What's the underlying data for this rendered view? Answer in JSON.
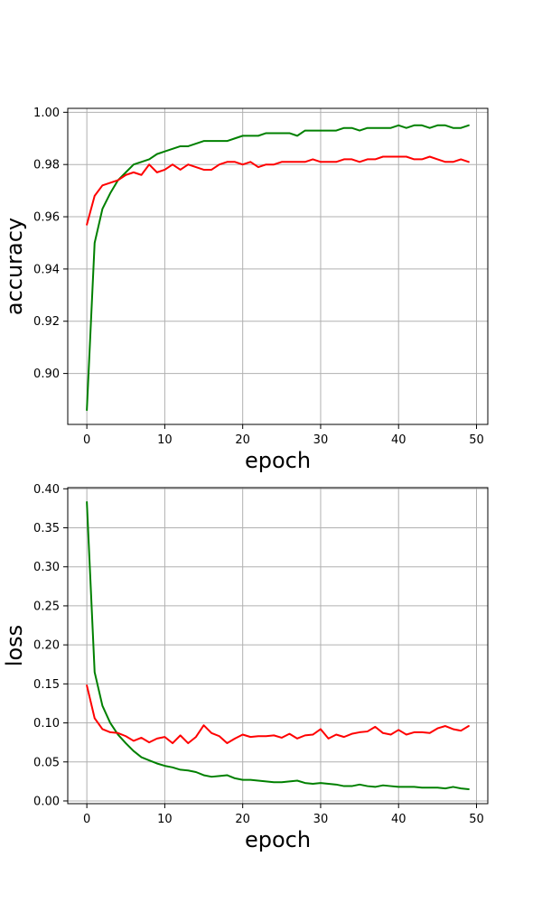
{
  "chart_data": [
    {
      "type": "line",
      "title": "",
      "xlabel": "epoch",
      "ylabel": "accuracy",
      "xlim": [
        -2.45,
        51.45
      ],
      "ylim": [
        0.8805,
        1.0015
      ],
      "xticks": [
        0,
        10,
        20,
        30,
        40,
        50
      ],
      "xtick_labels": [
        "0",
        "10",
        "20",
        "30",
        "40",
        "50"
      ],
      "yticks": [
        0.9,
        0.92,
        0.94,
        0.96,
        0.98,
        1.0
      ],
      "ytick_labels": [
        "0.90",
        "0.92",
        "0.94",
        "0.96",
        "0.98",
        "1.00"
      ],
      "grid": true,
      "legend": "none",
      "x": [
        0,
        1,
        2,
        3,
        4,
        5,
        6,
        7,
        8,
        9,
        10,
        11,
        12,
        13,
        14,
        15,
        16,
        17,
        18,
        19,
        20,
        21,
        22,
        23,
        24,
        25,
        26,
        27,
        28,
        29,
        30,
        31,
        32,
        33,
        34,
        35,
        36,
        37,
        38,
        39,
        40,
        41,
        42,
        43,
        44,
        45,
        46,
        47,
        48,
        49
      ],
      "series": [
        {
          "color": "#008000",
          "values": [
            0.886,
            0.95,
            0.963,
            0.969,
            0.974,
            0.977,
            0.98,
            0.981,
            0.982,
            0.984,
            0.985,
            0.986,
            0.987,
            0.987,
            0.988,
            0.989,
            0.989,
            0.989,
            0.989,
            0.99,
            0.991,
            0.991,
            0.991,
            0.992,
            0.992,
            0.992,
            0.992,
            0.991,
            0.993,
            0.993,
            0.993,
            0.993,
            0.993,
            0.994,
            0.994,
            0.993,
            0.994,
            0.994,
            0.994,
            0.994,
            0.995,
            0.994,
            0.995,
            0.995,
            0.994,
            0.995,
            0.995,
            0.994,
            0.994,
            0.995
          ]
        },
        {
          "color": "#ff0000",
          "values": [
            0.957,
            0.968,
            0.972,
            0.973,
            0.974,
            0.976,
            0.977,
            0.976,
            0.98,
            0.977,
            0.978,
            0.98,
            0.978,
            0.98,
            0.979,
            0.978,
            0.978,
            0.98,
            0.981,
            0.981,
            0.98,
            0.981,
            0.979,
            0.98,
            0.98,
            0.981,
            0.981,
            0.981,
            0.981,
            0.982,
            0.981,
            0.981,
            0.981,
            0.982,
            0.982,
            0.981,
            0.982,
            0.982,
            0.983,
            0.983,
            0.983,
            0.983,
            0.982,
            0.982,
            0.983,
            0.982,
            0.981,
            0.981,
            0.982,
            0.981
          ]
        }
      ]
    },
    {
      "type": "line",
      "title": "",
      "xlabel": "epoch",
      "ylabel": "loss",
      "xlim": [
        -2.45,
        51.45
      ],
      "ylim": [
        -0.0035,
        0.4015
      ],
      "xticks": [
        0,
        10,
        20,
        30,
        40,
        50
      ],
      "xtick_labels": [
        "0",
        "10",
        "20",
        "30",
        "40",
        "50"
      ],
      "yticks": [
        0.0,
        0.05,
        0.1,
        0.15,
        0.2,
        0.25,
        0.3,
        0.35,
        0.4
      ],
      "ytick_labels": [
        "0.00",
        "0.05",
        "0.10",
        "0.15",
        "0.20",
        "0.25",
        "0.30",
        "0.35",
        "0.40"
      ],
      "grid": true,
      "legend": "none",
      "x": [
        0,
        1,
        2,
        3,
        4,
        5,
        6,
        7,
        8,
        9,
        10,
        11,
        12,
        13,
        14,
        15,
        16,
        17,
        18,
        19,
        20,
        21,
        22,
        23,
        24,
        25,
        26,
        27,
        28,
        29,
        30,
        31,
        32,
        33,
        34,
        35,
        36,
        37,
        38,
        39,
        40,
        41,
        42,
        43,
        44,
        45,
        46,
        47,
        48,
        49
      ],
      "series": [
        {
          "color": "#008000",
          "values": [
            0.383,
            0.165,
            0.122,
            0.1,
            0.085,
            0.074,
            0.064,
            0.056,
            0.052,
            0.048,
            0.045,
            0.043,
            0.04,
            0.039,
            0.037,
            0.033,
            0.031,
            0.032,
            0.033,
            0.029,
            0.027,
            0.027,
            0.026,
            0.025,
            0.024,
            0.024,
            0.025,
            0.026,
            0.023,
            0.022,
            0.023,
            0.022,
            0.021,
            0.019,
            0.019,
            0.021,
            0.019,
            0.018,
            0.02,
            0.019,
            0.018,
            0.018,
            0.018,
            0.017,
            0.017,
            0.017,
            0.016,
            0.018,
            0.016,
            0.015
          ]
        },
        {
          "color": "#ff0000",
          "values": [
            0.148,
            0.106,
            0.092,
            0.088,
            0.087,
            0.083,
            0.077,
            0.081,
            0.075,
            0.08,
            0.082,
            0.074,
            0.084,
            0.074,
            0.082,
            0.097,
            0.087,
            0.083,
            0.074,
            0.08,
            0.085,
            0.082,
            0.083,
            0.083,
            0.084,
            0.081,
            0.086,
            0.08,
            0.084,
            0.085,
            0.092,
            0.08,
            0.085,
            0.082,
            0.086,
            0.088,
            0.089,
            0.095,
            0.087,
            0.085,
            0.091,
            0.085,
            0.088,
            0.088,
            0.087,
            0.093,
            0.096,
            0.092,
            0.09,
            0.096
          ]
        }
      ]
    }
  ]
}
